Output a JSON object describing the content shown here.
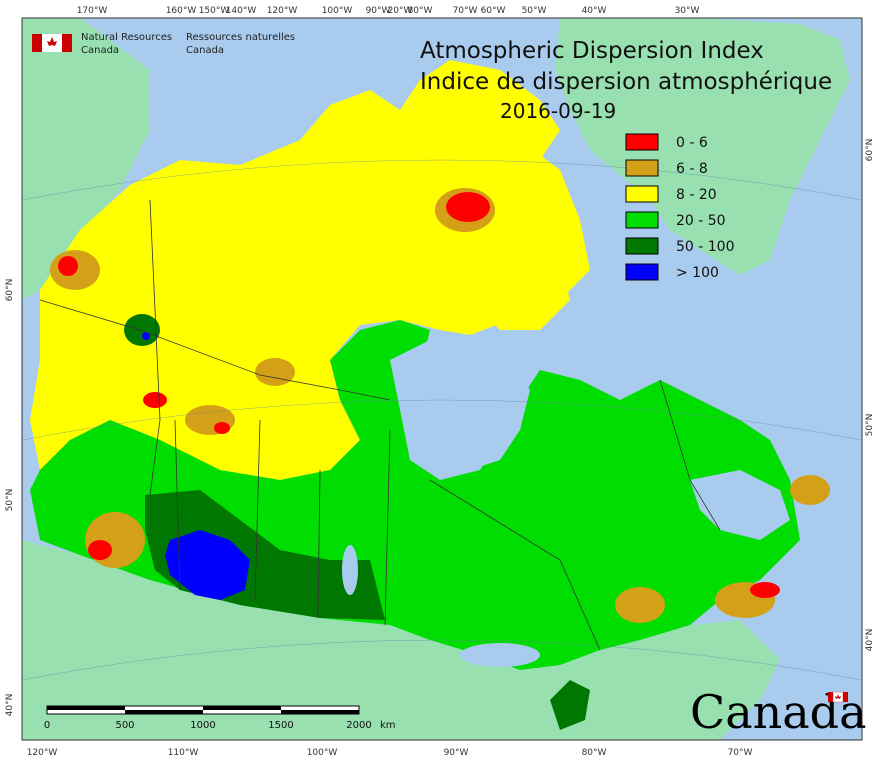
{
  "title": {
    "en": "Atmospheric Dispersion Index",
    "fr": "Indice de dispersion atmosphérique",
    "date": "2016-09-19"
  },
  "organization": {
    "en_line1": "Natural Resources",
    "en_line2": "Canada",
    "fr_line1": "Ressources naturelles",
    "fr_line2": "Canada"
  },
  "wordmark": "Canada",
  "legend": [
    {
      "label": "0 - 6",
      "color": "#ff0000"
    },
    {
      "label": "6 - 8",
      "color": "#d4a017"
    },
    {
      "label": "8 - 20",
      "color": "#ffff00"
    },
    {
      "label": "20 - 50",
      "color": "#00dd00"
    },
    {
      "label": "50 - 100",
      "color": "#007700"
    },
    {
      "label": "> 100",
      "color": "#0000ff"
    }
  ],
  "top_longitudes": [
    "170°W",
    "160°W",
    "150°W",
    "140°W",
    "120°W",
    "100°W",
    "90°W",
    "80°W",
    "70°W",
    "60°W",
    "50°W",
    "40°W",
    "30°W",
    "20°W"
  ],
  "bottom_longitudes": [
    "120°W",
    "110°W",
    "100°W",
    "90°W",
    "80°W",
    "70°W"
  ],
  "left_latitudes": [
    "60°N",
    "50°N",
    "40°N"
  ],
  "right_latitudes": [
    "60°N",
    "50°N",
    "40°N"
  ],
  "scale_bar": {
    "ticks": [
      "0",
      "500",
      "1000",
      "1500",
      "2000"
    ],
    "unit": "km"
  },
  "colors": {
    "ocean": "#a9cbee",
    "foreign_land": "#98e0b0",
    "border": "#333333"
  }
}
